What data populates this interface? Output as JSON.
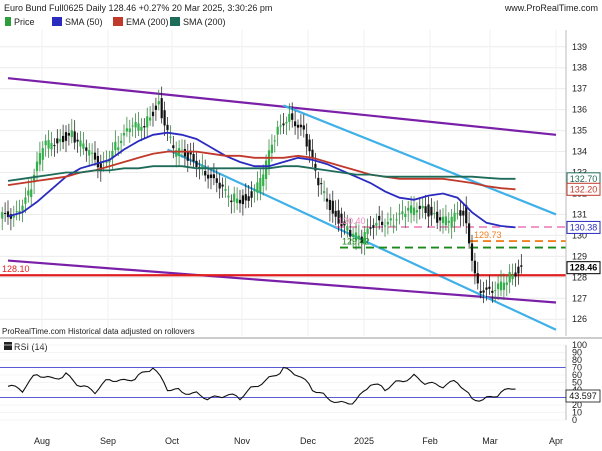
{
  "header": {
    "title": "Euro Bund Full0625 Daily 128.46 +0.27% 20 Mar 2025, 3:30:26 pm",
    "source": "www.ProRealTime.com"
  },
  "legend": [
    {
      "label": "Price",
      "color": "#2e9e3c",
      "icon": "candle-icon"
    },
    {
      "label": "SMA (50)",
      "color": "#2b2bbf",
      "icon": "line-swatch-icon"
    },
    {
      "label": "EMA (200)",
      "color": "#c0392b",
      "icon": "line-swatch-icon"
    },
    {
      "label": "SMA (200)",
      "color": "#1e6b5a",
      "icon": "line-swatch-icon"
    }
  ],
  "footer_note": "ProRealTime.com  Historical data adjusted on rollovers",
  "rsi_panel": {
    "label": "RSI (14)",
    "value_tag": "43.597"
  },
  "chart_data": [
    {
      "type": "line",
      "title": "Euro Bund Full0625 Daily 128.46 +0.27% 20 Mar 2025, 3:30:26 pm",
      "ylim": [
        125.2,
        139.8
      ],
      "y_ticks": [
        126,
        127,
        128,
        129,
        130,
        131,
        132,
        133,
        134,
        135,
        136,
        137,
        138,
        139
      ],
      "x_ticks": [
        "Aug",
        "Sep",
        "Oct",
        "Nov",
        "Dec",
        "2025",
        "Feb",
        "Mar",
        "Apr"
      ],
      "grid": true,
      "legend_position": "top-left",
      "x": [
        "Jul 22",
        "Jul 29",
        "Aug 5",
        "Aug 12",
        "Aug 19",
        "Aug 26",
        "Sep 2",
        "Sep 9",
        "Sep 16",
        "Sep 23",
        "Sep 30",
        "Oct 7",
        "Oct 14",
        "Oct 21",
        "Oct 28",
        "Nov 4",
        "Nov 11",
        "Nov 18",
        "Nov 25",
        "Dec 2",
        "Dec 9",
        "Dec 16",
        "Dec 23",
        "Dec 30",
        "Jan 6",
        "Jan 13",
        "Jan 20",
        "Jan 27",
        "Feb 3",
        "Feb 10",
        "Feb 17",
        "Feb 24",
        "Mar 3",
        "Mar 10",
        "Mar 17",
        "Mar 20"
      ],
      "series": [
        {
          "name": "Price",
          "color": "#2e9e3c",
          "values": [
            131.1,
            131.9,
            134.2,
            134.6,
            134.8,
            134.0,
            133.3,
            134.3,
            135.0,
            135.4,
            136.3,
            134.0,
            133.8,
            133.3,
            132.3,
            131.8,
            131.7,
            132.5,
            134.7,
            135.9,
            134.8,
            132.5,
            131.2,
            130.2,
            129.7,
            130.8,
            130.6,
            131.0,
            131.5,
            130.9,
            130.6,
            131.2,
            127.6,
            127.1,
            128.0,
            128.46
          ]
        },
        {
          "name": "SMA (50)",
          "color": "#2b2bbf",
          "values": [
            130.9,
            131.1,
            131.6,
            132.2,
            132.8,
            133.2,
            133.4,
            133.6,
            134.1,
            134.5,
            134.8,
            134.9,
            134.8,
            134.6,
            134.2,
            133.8,
            133.5,
            133.3,
            133.3,
            133.5,
            133.7,
            133.6,
            133.4,
            133.1,
            132.8,
            132.5,
            132.1,
            131.8,
            131.7,
            131.9,
            132.0,
            131.8,
            131.1,
            130.6,
            130.45,
            130.38
          ]
        },
        {
          "name": "EMA (200)",
          "color": "#c0392b",
          "values": [
            132.4,
            132.5,
            132.6,
            132.7,
            132.8,
            133.0,
            133.1,
            133.3,
            133.5,
            133.7,
            133.9,
            134.0,
            134.0,
            134.0,
            133.9,
            133.8,
            133.8,
            133.7,
            133.7,
            133.7,
            133.8,
            133.7,
            133.5,
            133.3,
            133.1,
            132.9,
            132.8,
            132.7,
            132.7,
            132.7,
            132.7,
            132.6,
            132.5,
            132.35,
            132.25,
            132.2
          ]
        },
        {
          "name": "SMA (200)",
          "color": "#1e6b5a",
          "values": [
            132.6,
            132.7,
            132.8,
            132.9,
            133.0,
            133.0,
            133.1,
            133.1,
            133.2,
            133.2,
            133.3,
            133.3,
            133.3,
            133.2,
            133.2,
            133.2,
            133.2,
            133.2,
            133.2,
            133.3,
            133.3,
            133.2,
            133.1,
            133.0,
            132.9,
            132.9,
            132.8,
            132.8,
            132.8,
            132.8,
            132.8,
            132.8,
            132.8,
            132.75,
            132.7,
            132.7
          ]
        }
      ],
      "levels": [
        {
          "label": "128.10",
          "value": 128.1,
          "color": "#e02020",
          "style": "solid"
        },
        {
          "label": "130.40",
          "value": 130.4,
          "color": "#f08ac0",
          "style": "dashed"
        },
        {
          "label": "129.42",
          "value": 129.42,
          "color": "#1a8a1a",
          "style": "dashed"
        },
        {
          "label": "129.73",
          "value": 129.73,
          "color": "#f08020",
          "style": "dashed"
        }
      ],
      "trendlines": [
        {
          "name": "purple-upper",
          "color": "#7a1fa8",
          "from": [
            "Jul 22",
            137.5
          ],
          "to": [
            "Apr",
            134.8
          ]
        },
        {
          "name": "purple-lower",
          "color": "#7a1fa8",
          "from": [
            "Jul 22",
            128.8
          ],
          "to": [
            "Apr",
            126.8
          ]
        },
        {
          "name": "blue-channel-top",
          "color": "#3fb0e8",
          "from": [
            "Dec 2",
            136.2
          ],
          "to": [
            "Apr",
            131.0
          ]
        },
        {
          "name": "blue-channel-bottom",
          "color": "#3fb0e8",
          "from": [
            "Oct 7",
            134.1
          ],
          "to": [
            "Apr",
            125.5
          ]
        }
      ],
      "price_tags": [
        {
          "label": "132.70",
          "value": 132.7,
          "color": "#1e6b5a"
        },
        {
          "label": "132.20",
          "value": 132.2,
          "color": "#c0392b"
        },
        {
          "label": "130.38",
          "value": 130.38,
          "color": "#2b2bbf"
        },
        {
          "label": "128.46",
          "value": 128.46,
          "color": "#000000"
        }
      ]
    },
    {
      "type": "line",
      "title": "RSI (14)",
      "ylim": [
        0,
        100
      ],
      "y_ticks": [
        0,
        10,
        20,
        30,
        40,
        50,
        60,
        70,
        80,
        90,
        100
      ],
      "bands": [
        30,
        70
      ],
      "series": [
        {
          "name": "RSI (14)",
          "color": "#111111",
          "values": [
            45,
            40,
            62,
            55,
            60,
            45,
            38,
            55,
            52,
            58,
            70,
            42,
            38,
            35,
            28,
            33,
            30,
            45,
            55,
            68,
            60,
            42,
            30,
            22,
            25,
            48,
            42,
            52,
            58,
            48,
            45,
            52,
            28,
            28,
            36,
            43.597
          ]
        }
      ]
    }
  ]
}
